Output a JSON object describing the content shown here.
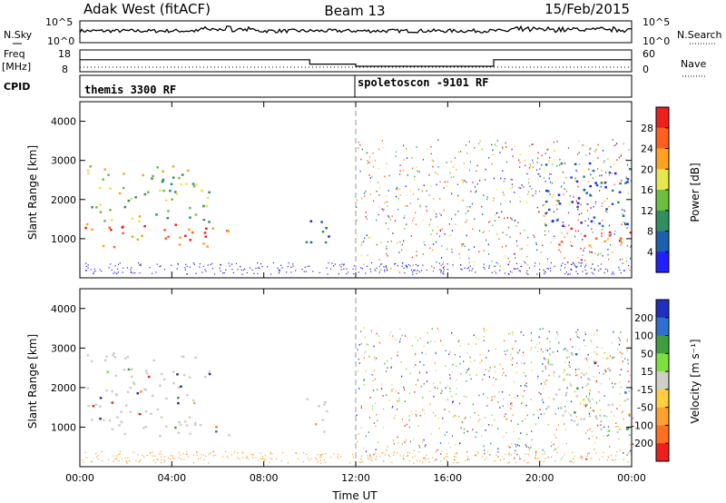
{
  "header": {
    "left_title": "Adak West (fitACF)",
    "center_title": "Beam 13",
    "right_title": "15/Feb/2015"
  },
  "top_panels": {
    "nsky_label": "N.Sky",
    "nsearch_label": "N.Search",
    "freq_label_line1": "Freq",
    "freq_label_line2": "[MHz]",
    "nave_label": "Nave",
    "cpid_label": "CPID",
    "count_axis_labels": [
      "10^5",
      "10^0"
    ],
    "freq_axis_labels": [
      "18",
      "8"
    ],
    "nave_axis_labels": [
      "60",
      "0"
    ]
  },
  "cpid": {
    "segments": [
      {
        "label": "themis 3300 RF",
        "start_hour": 0
      },
      {
        "label": "spoletoscon -9101 RF",
        "start_hour": 12
      }
    ]
  },
  "freq_trace": [
    {
      "start_hour": 0,
      "end_hour": 10,
      "value": 0.55
    },
    {
      "start_hour": 10,
      "end_hour": 12,
      "value": 0.35
    },
    {
      "start_hour": 12,
      "end_hour": 18,
      "value": 0.25
    },
    {
      "start_hour": 18,
      "end_hour": 24,
      "value": 0.55
    }
  ],
  "chart_data": [
    {
      "type": "heatmap",
      "name": "power",
      "xlabel": "",
      "ylabel": "Slant Range [km]",
      "xlim": [
        0,
        24
      ],
      "ylim": [
        0,
        4500
      ],
      "y_ticks": [
        "1000",
        "2000",
        "3000",
        "4000"
      ],
      "colorbar": {
        "label": "Power [dB]",
        "ticks": [
          "4",
          "8",
          "12",
          "16",
          "20",
          "24",
          "28"
        ],
        "colors": [
          "#1f1fff",
          "#1f5fb0",
          "#2f8f5f",
          "#6fbf3f",
          "#e6e64f",
          "#ffa21f",
          "#ff5f1f",
          "#ef1f1f"
        ]
      }
    },
    {
      "type": "heatmap",
      "name": "velocity",
      "xlabel": "Time UT",
      "ylabel": "Slant Range [km]",
      "xlim": [
        0,
        24
      ],
      "ylim": [
        0,
        4500
      ],
      "x_ticks": [
        "00:00",
        "04:00",
        "08:00",
        "12:00",
        "16:00",
        "20:00",
        "00:00"
      ],
      "y_ticks": [
        "1000",
        "2000",
        "3000",
        "4000"
      ],
      "colorbar": {
        "label": "Velocity [m s⁻¹]",
        "ticks": [
          "200",
          "100",
          "50",
          "15",
          "-15",
          "-50",
          "-100",
          "-200"
        ],
        "colors": [
          "#1f2fbf",
          "#2f6fcf",
          "#3f9f3f",
          "#7fdf3f",
          "#cfcfc8",
          "#ffcf3f",
          "#ffa02f",
          "#ff6f1f",
          "#ef1f1f"
        ]
      }
    }
  ]
}
